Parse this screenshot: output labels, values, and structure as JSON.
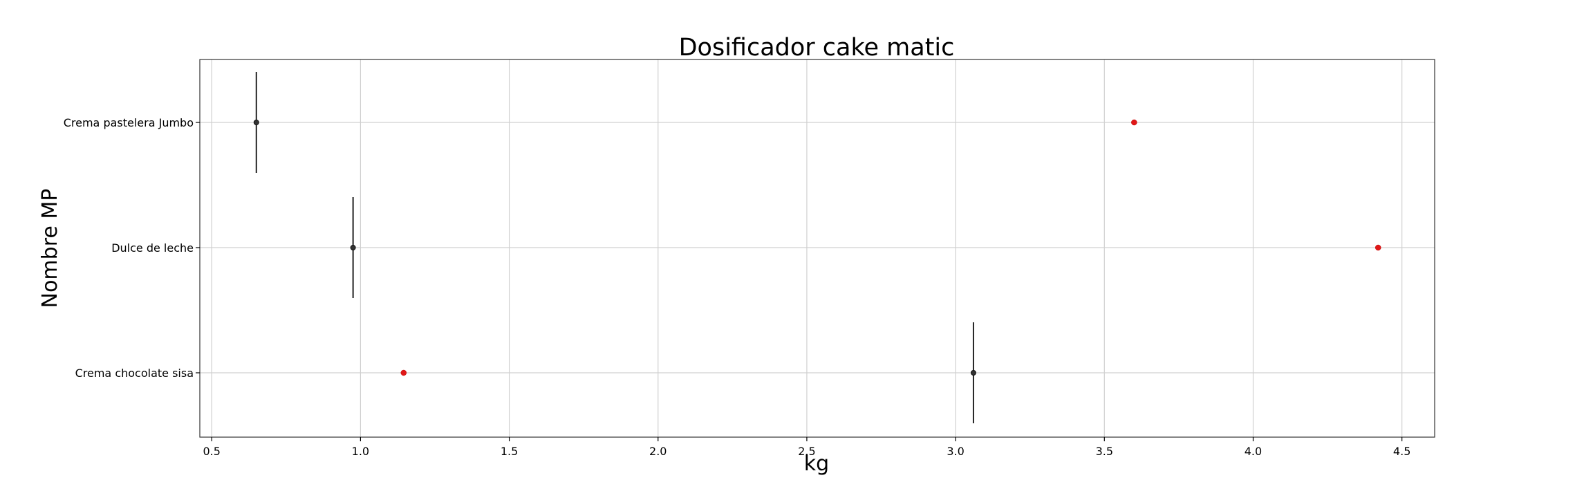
{
  "chart_data": {
    "type": "scatter",
    "title": "Dosificador cake matic",
    "xlabel": "kg",
    "ylabel": "Nombre MP",
    "xlim": [
      0.46,
      4.61
    ],
    "xticks": [
      "0.5",
      "1.0",
      "1.5",
      "2.0",
      "2.5",
      "3.0",
      "3.5",
      "4.0",
      "4.5"
    ],
    "xtick_values": [
      0.5,
      1.0,
      1.5,
      2.0,
      2.5,
      3.0,
      3.5,
      4.0,
      4.5
    ],
    "categories": [
      "Crema pastelera Jumbo",
      "Dulce de leche",
      "Crema chocolate sisa"
    ],
    "grid": true,
    "series": [
      {
        "marker": "black-point-with-vertical-line",
        "color": "#333333",
        "values": [
          0.65,
          0.975,
          3.06
        ]
      },
      {
        "marker": "red-point",
        "color": "#e01818",
        "values": [
          3.6,
          4.42,
          1.145
        ]
      }
    ]
  }
}
